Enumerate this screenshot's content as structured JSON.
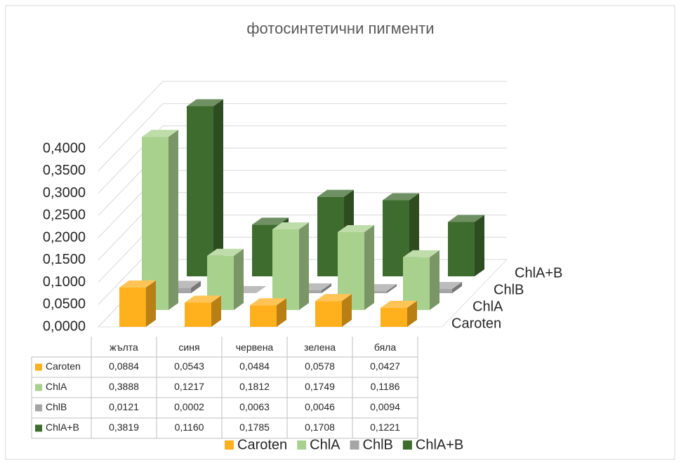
{
  "chart_data": {
    "type": "bar",
    "title": "фотосинтетични пигменти",
    "categories": [
      "жълта",
      "синя",
      "червена",
      "зелена",
      "бяла"
    ],
    "series": [
      {
        "name": "Caroten",
        "color": "#ffb01c",
        "values": [
          0.0884,
          0.0543,
          0.0484,
          0.0578,
          0.0427
        ],
        "value_labels": [
          "0,0884",
          "0,0543",
          "0,0484",
          "0,0578",
          "0,0427"
        ]
      },
      {
        "name": "ChlA",
        "color": "#a9d18e",
        "values": [
          0.3888,
          0.1217,
          0.1812,
          0.1749,
          0.1186
        ],
        "value_labels": [
          "0,3888",
          "0,1217",
          "0,1812",
          "0,1749",
          "0,1186"
        ]
      },
      {
        "name": "ChlB",
        "color": "#a5a5a5",
        "values": [
          0.0121,
          0.0002,
          0.0063,
          0.0046,
          0.0094
        ],
        "value_labels": [
          "0,0121",
          "0,0002",
          "0,0063",
          "0,0046",
          "0,0094"
        ]
      },
      {
        "name": "ChlA+B",
        "color": "#3e6b2e",
        "values": [
          0.3819,
          0.116,
          0.1785,
          0.1708,
          0.1221
        ],
        "value_labels": [
          "0,3819",
          "0,1160",
          "0,1785",
          "0,1708",
          "0,1221"
        ]
      }
    ],
    "ylim": [
      0,
      0.4
    ],
    "yticks": [
      {
        "value": 0,
        "label": "0,0000"
      },
      {
        "value": 0.05,
        "label": "0,0500"
      },
      {
        "value": 0.1,
        "label": "0,1000"
      },
      {
        "value": 0.15,
        "label": "0,1500"
      },
      {
        "value": 0.2,
        "label": "0,2000"
      },
      {
        "value": 0.25,
        "label": "0,2500"
      },
      {
        "value": 0.3,
        "label": "0,3000"
      },
      {
        "value": 0.35,
        "label": "0,3500"
      },
      {
        "value": 0.4,
        "label": "0,4000"
      }
    ],
    "grid": true,
    "legend": "bottom",
    "data_table": true
  }
}
